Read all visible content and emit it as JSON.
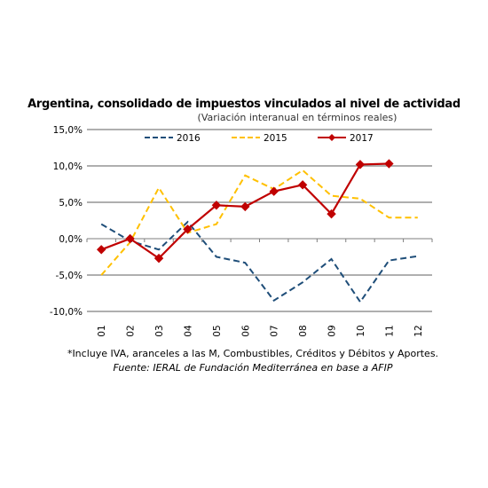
{
  "chart_data": {
    "type": "line",
    "title": "Argentina, consolidado de impuestos vinculados al nivel de actividad",
    "subtitle": "(Variación interanual en términos reales)",
    "categories": [
      "01",
      "02",
      "03",
      "04",
      "05",
      "06",
      "07",
      "08",
      "09",
      "10",
      "11",
      "12"
    ],
    "ylim": [
      -10,
      15
    ],
    "yticks": [
      15,
      10,
      5,
      0,
      -5,
      -10
    ],
    "ytick_labels": [
      "15,0%",
      "10,0%",
      "5,0%",
      "0,0%",
      "-5,0%",
      "-10,0%"
    ],
    "grid": true,
    "legend_position": "top",
    "series": [
      {
        "name": "2016",
        "color": "#1f4e79",
        "style": "dashed",
        "values": [
          2.0,
          -0.3,
          -1.5,
          2.3,
          -2.5,
          -3.3,
          -8.5,
          -6.0,
          -2.8,
          -8.7,
          -3.0,
          -2.4
        ]
      },
      {
        "name": "2015",
        "color": "#ffc000",
        "style": "dashed",
        "values": [
          -5.0,
          -0.5,
          7.0,
          0.8,
          2.0,
          8.7,
          6.8,
          9.4,
          5.9,
          5.5,
          2.9,
          2.9
        ]
      },
      {
        "name": "2017",
        "color": "#c00000",
        "style": "solid",
        "marker": "diamond",
        "values": [
          -1.5,
          0.0,
          -2.7,
          1.3,
          4.6,
          4.4,
          6.5,
          7.4,
          3.4,
          10.2,
          10.3,
          null
        ]
      }
    ]
  },
  "notes": {
    "line1": "*Incluye IVA, aranceles a las M, Combustibles, Créditos y Débitos y Aportes.",
    "line2": "Fuente: IERAL de Fundación Mediterránea en base a AFIP"
  }
}
